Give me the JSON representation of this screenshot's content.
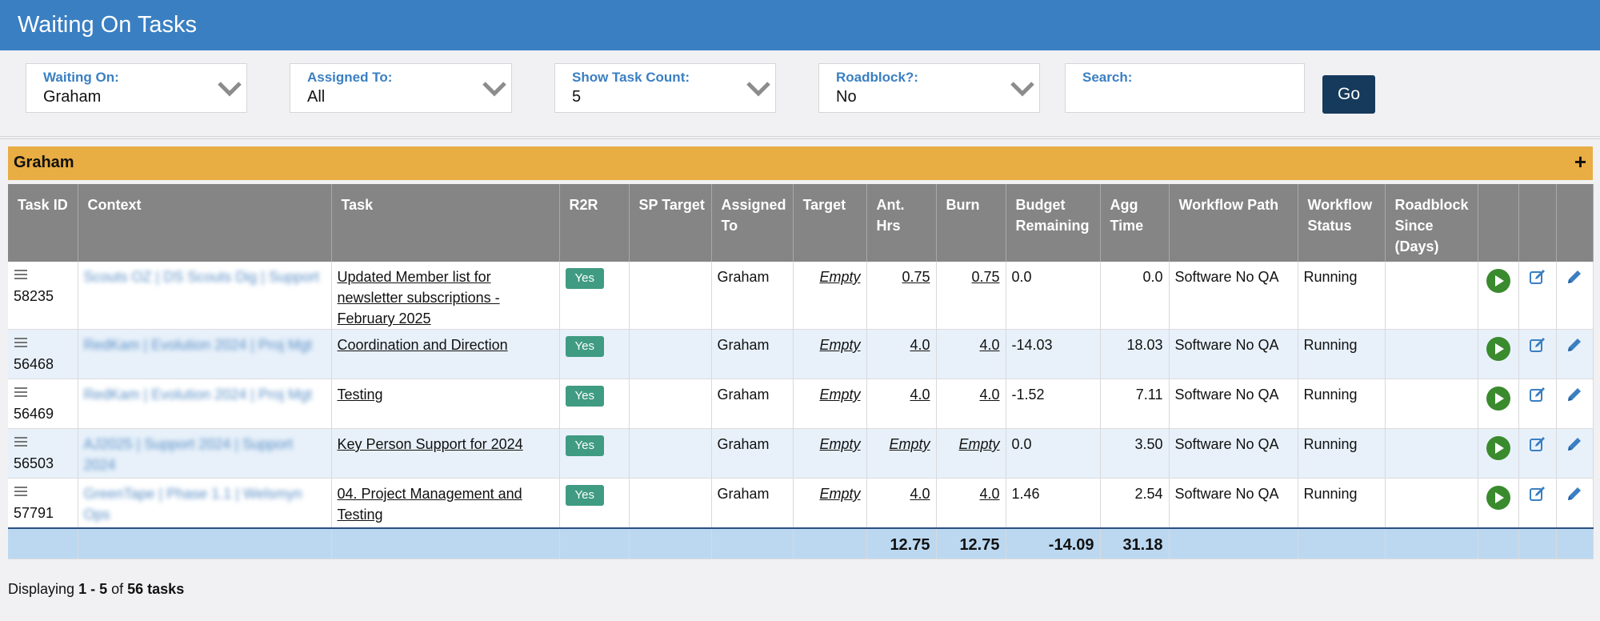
{
  "header": {
    "title": "Waiting On Tasks"
  },
  "filters": {
    "waiting_on": {
      "label": "Waiting On:",
      "value": "Graham"
    },
    "assigned_to": {
      "label": "Assigned To:",
      "value": "All"
    },
    "show_task_count": {
      "label": "Show Task Count:",
      "value": "5"
    },
    "roadblock": {
      "label": "Roadblock?:",
      "value": "No"
    },
    "search": {
      "label": "Search:",
      "value": ""
    },
    "go_label": "Go"
  },
  "group": {
    "name": "Graham",
    "toggle": "+"
  },
  "columns": [
    "Task ID",
    "Context",
    "Task",
    "R2R",
    "SP Target",
    "Assigned To",
    "Target",
    "Ant. Hrs",
    "Burn",
    "Budget Remaining",
    "Agg Time",
    "Workflow Path",
    "Workflow Status",
    "Roadblock Since (Days)",
    "",
    "",
    ""
  ],
  "rows": [
    {
      "id": "58235",
      "context": "Scouts OZ | DS Scouts Dig | Support",
      "task": "Updated Member list for newsletter subscriptions - February 2025",
      "r2r": "Yes",
      "sp_target": "",
      "assigned": "Graham",
      "target": "Empty",
      "ant_hrs": "0.75",
      "burn": "0.75",
      "budget": "0.0",
      "agg": "0.0",
      "wf_path": "Software No QA",
      "wf_status": "Running",
      "roadblock": ""
    },
    {
      "id": "56468",
      "context": "RedKam | Evolution 2024 | Proj Mgt",
      "task": "Coordination and Direction",
      "r2r": "Yes",
      "sp_target": "",
      "assigned": "Graham",
      "target": "Empty",
      "ant_hrs": "4.0",
      "burn": "4.0",
      "budget": "-14.03",
      "agg": "18.03",
      "wf_path": "Software No QA",
      "wf_status": "Running",
      "roadblock": ""
    },
    {
      "id": "56469",
      "context": "RedKam | Evolution 2024 | Proj Mgt",
      "task": "Testing",
      "r2r": "Yes",
      "sp_target": "",
      "assigned": "Graham",
      "target": "Empty",
      "ant_hrs": "4.0",
      "burn": "4.0",
      "budget": "-1.52",
      "agg": "7.11",
      "wf_path": "Software No QA",
      "wf_status": "Running",
      "roadblock": ""
    },
    {
      "id": "56503",
      "context": "AJ2025 | Support 2024 | Support 2024",
      "task": "Key Person Support for 2024",
      "r2r": "Yes",
      "sp_target": "",
      "assigned": "Graham",
      "target": "Empty",
      "ant_hrs": "Empty",
      "burn": "Empty",
      "budget": "0.0",
      "agg": "3.50",
      "wf_path": "Software No QA",
      "wf_status": "Running",
      "roadblock": ""
    },
    {
      "id": "57791",
      "context": "GreenTape | Phase 1.1 | Welsmyn Ops",
      "task": "04. Project Management and Testing",
      "r2r": "Yes",
      "sp_target": "",
      "assigned": "Graham",
      "target": "Empty",
      "ant_hrs": "4.0",
      "burn": "4.0",
      "budget": "1.46",
      "agg": "2.54",
      "wf_path": "Software No QA",
      "wf_status": "Running",
      "roadblock": ""
    }
  ],
  "totals": {
    "ant_hrs": "12.75",
    "burn": "12.75",
    "budget": "-14.09",
    "agg": "31.18"
  },
  "footer": {
    "prefix": "Displaying",
    "range": "1 - 5",
    "mid": "of",
    "total": "56 tasks"
  },
  "icons": {
    "drag": "drag-handle-icon",
    "play": "play-icon",
    "edit_box": "edit-box-icon",
    "pencil": "pencil-icon"
  },
  "colors": {
    "header": "#3a7fc2",
    "group": "#e8ad43",
    "badge": "#3f9b82",
    "play": "#3a8a2e",
    "go": "#163a5c"
  }
}
